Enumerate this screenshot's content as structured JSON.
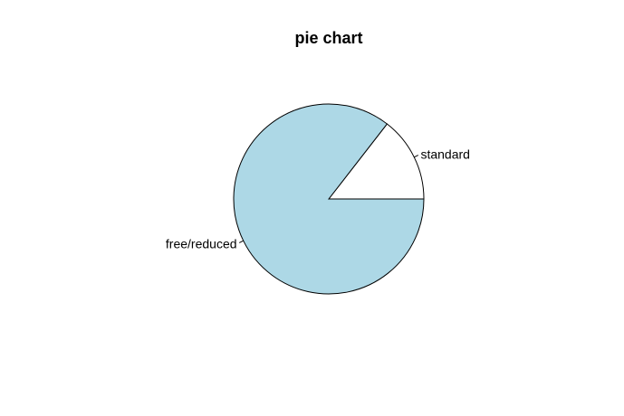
{
  "chart_data": {
    "type": "pie",
    "title": "pie chart",
    "categories": [
      "standard",
      "free/reduced"
    ],
    "values": [
      0.145,
      0.855
    ],
    "colors": [
      "#ffffff",
      "#add8e6"
    ],
    "direction": "counterclockwise",
    "start_angle_degrees": 0
  }
}
